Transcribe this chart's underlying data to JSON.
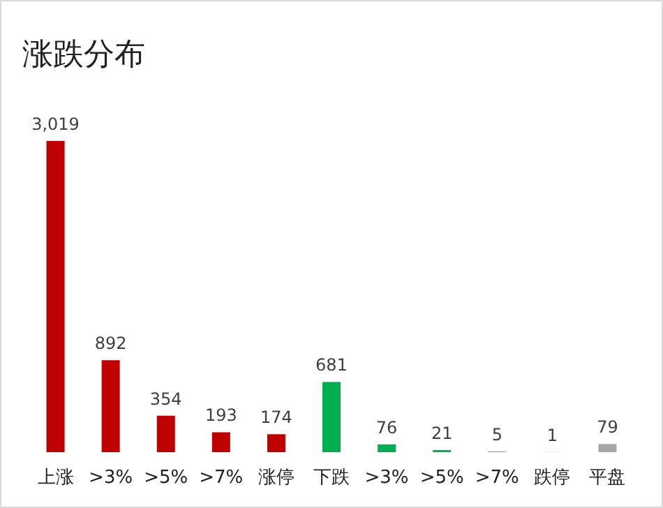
{
  "chart_data": {
    "type": "bar",
    "title": "涨跌分布",
    "categories": [
      "上涨",
      ">3%",
      ">5%",
      ">7%",
      "涨停",
      "下跌",
      ">3%",
      ">5%",
      ">7%",
      "跌停",
      "平盘"
    ],
    "values": [
      3019,
      892,
      354,
      193,
      174,
      681,
      76,
      21,
      5,
      1,
      79
    ],
    "colors": [
      "#c00000",
      "#c00000",
      "#c00000",
      "#c00000",
      "#c00000",
      "#00b050",
      "#00b050",
      "#00b050",
      "#00b050",
      "#00b050",
      "#a6a6a6"
    ],
    "value_labels": [
      "3,019",
      "892",
      "354",
      "193",
      "174",
      "681",
      "76",
      "21",
      "5",
      "1",
      "79"
    ]
  }
}
